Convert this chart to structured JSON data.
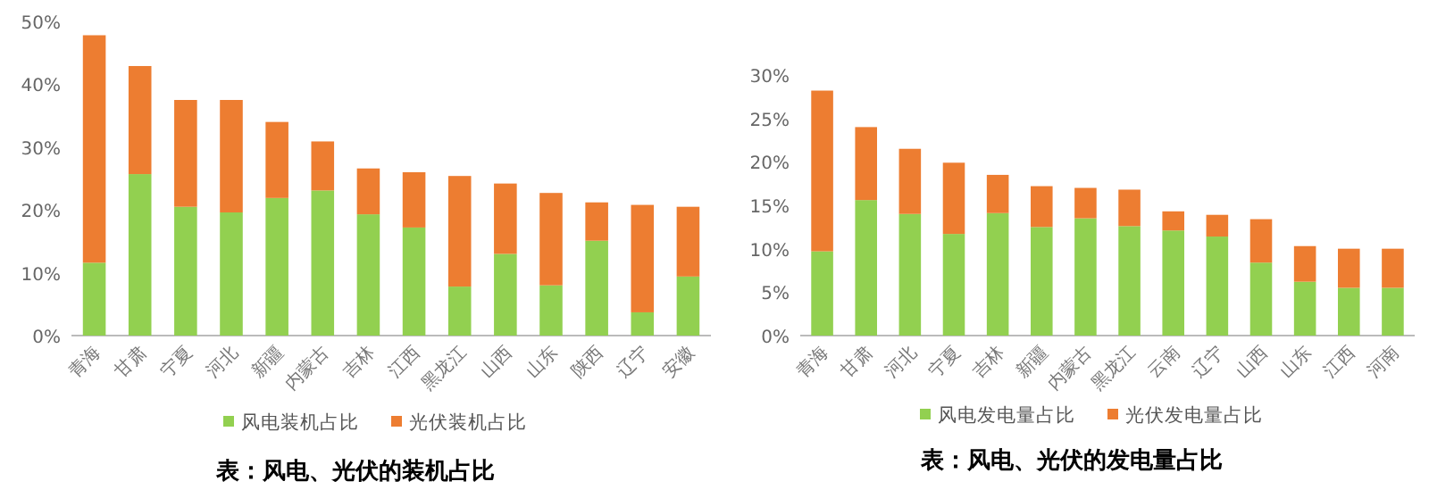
{
  "chart_data": [
    {
      "type": "bar",
      "stacked": true,
      "title": "表：风电、光伏的装机占比",
      "categories": [
        "青海",
        "甘肃",
        "宁夏",
        "河北",
        "新疆",
        "内蒙古",
        "吉林",
        "江西",
        "黑龙江",
        "山西",
        "山东",
        "陕西",
        "辽宁",
        "安徽"
      ],
      "series": [
        {
          "name": "风电装机占比",
          "color": "#92d050",
          "values": [
            11.6,
            25.7,
            20.5,
            19.6,
            21.9,
            23.1,
            19.3,
            17.2,
            7.8,
            13.0,
            8.0,
            15.1,
            3.7,
            9.4
          ]
        },
        {
          "name": "光伏装机占比",
          "color": "#ed7d31",
          "values": [
            36.2,
            17.2,
            17.0,
            17.9,
            12.1,
            7.8,
            7.3,
            8.8,
            17.6,
            11.2,
            14.7,
            6.1,
            17.1,
            11.1
          ]
        }
      ],
      "ylim": [
        0,
        50
      ],
      "yticks": [
        {
          "value": 0,
          "label": "0%"
        },
        {
          "value": 10,
          "label": "10%"
        },
        {
          "value": 20,
          "label": "20%"
        },
        {
          "value": 30,
          "label": "30%"
        },
        {
          "value": 40,
          "label": "40%"
        },
        {
          "value": 50,
          "label": "50%"
        }
      ],
      "legend": "bottom"
    },
    {
      "type": "bar",
      "stacked": true,
      "title": "表：风电、光伏的发电量占比",
      "categories": [
        "青海",
        "甘肃",
        "河北",
        "宁夏",
        "吉林",
        "新疆",
        "内蒙古",
        "黑龙江",
        "云南",
        "辽宁",
        "山西",
        "山东",
        "江西",
        "河南"
      ],
      "series": [
        {
          "name": "风电发电量占比",
          "color": "#92d050",
          "values": [
            9.7,
            15.6,
            14.0,
            11.7,
            14.1,
            12.5,
            13.5,
            12.6,
            12.1,
            11.4,
            8.4,
            6.2,
            5.5,
            5.5
          ]
        },
        {
          "name": "光伏发电量占比",
          "color": "#ed7d31",
          "values": [
            18.5,
            8.4,
            7.5,
            8.2,
            4.4,
            4.7,
            3.5,
            4.2,
            2.2,
            2.5,
            5.0,
            4.1,
            4.5,
            4.5
          ]
        }
      ],
      "ylim": [
        0,
        30
      ],
      "yticks": [
        {
          "value": 0,
          "label": "0%"
        },
        {
          "value": 5,
          "label": "5%"
        },
        {
          "value": 10,
          "label": "10%"
        },
        {
          "value": 15,
          "label": "15%"
        },
        {
          "value": 20,
          "label": "20%"
        },
        {
          "value": 25,
          "label": "25%"
        },
        {
          "value": 30,
          "label": "30%"
        }
      ],
      "legend": "bottom"
    }
  ]
}
